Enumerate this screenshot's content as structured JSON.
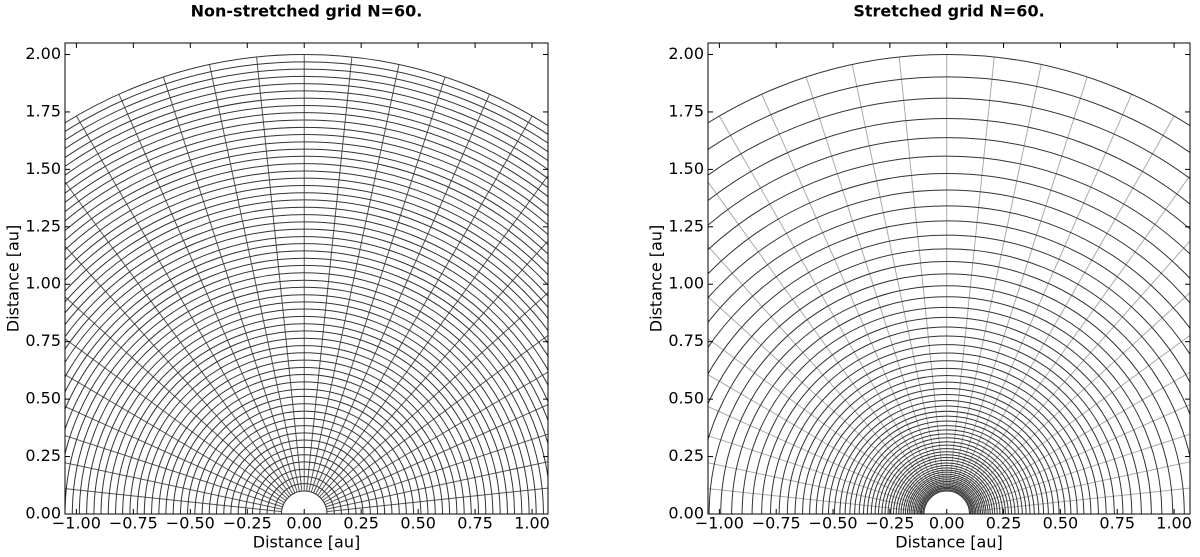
{
  "chart_data": [
    {
      "type": "polar-grid",
      "title": "Non-stretched grid N=60.",
      "xlabel": "Distance [au]",
      "ylabel": "Distance [au]",
      "arc_color": "#333333",
      "ray_color": "#555555",
      "xlim": [
        -1.05,
        1.07
      ],
      "ylim": [
        0,
        2.05
      ],
      "xticks": [
        {
          "value": -1,
          "label": "−1.00"
        },
        {
          "value": -0.75,
          "label": "−0.75"
        },
        {
          "value": -0.5,
          "label": "−0.50"
        },
        {
          "value": -0.25,
          "label": "−0.25"
        },
        {
          "value": 0,
          "label": "0.00"
        },
        {
          "value": 0.25,
          "label": "0.25"
        },
        {
          "value": 0.5,
          "label": "0.50"
        },
        {
          "value": 0.75,
          "label": "0.75"
        },
        {
          "value": 1,
          "label": "1.00"
        }
      ],
      "yticks": [
        {
          "value": 0,
          "label": "0.00"
        },
        {
          "value": 0.25,
          "label": "0.25"
        },
        {
          "value": 0.5,
          "label": "0.50"
        },
        {
          "value": 0.75,
          "label": "0.75"
        },
        {
          "value": 1,
          "label": "1.00"
        },
        {
          "value": 1.25,
          "label": "1.25"
        },
        {
          "value": 1.5,
          "label": "1.50"
        },
        {
          "value": 1.75,
          "label": "1.75"
        },
        {
          "value": 2,
          "label": "2.00"
        }
      ],
      "radii": [
        0.1,
        0.132,
        0.163,
        0.195,
        0.227,
        0.258,
        0.29,
        0.322,
        0.353,
        0.385,
        0.417,
        0.448,
        0.48,
        0.512,
        0.543,
        0.575,
        0.607,
        0.638,
        0.67,
        0.702,
        0.733,
        0.765,
        0.797,
        0.828,
        0.86,
        0.892,
        0.923,
        0.955,
        0.987,
        1.018,
        1.05,
        1.082,
        1.113,
        1.145,
        1.177,
        1.208,
        1.24,
        1.272,
        1.303,
        1.335,
        1.367,
        1.398,
        1.43,
        1.462,
        1.493,
        1.525,
        1.557,
        1.588,
        1.62,
        1.652,
        1.683,
        1.715,
        1.747,
        1.778,
        1.81,
        1.842,
        1.873,
        1.905,
        1.937,
        1.968,
        2.0
      ],
      "angles": [
        0,
        6,
        12,
        18,
        24,
        30,
        36,
        42,
        48,
        54,
        60,
        66,
        72,
        78,
        84,
        90,
        96,
        102,
        108,
        114,
        120,
        126,
        132,
        138,
        144,
        150,
        156,
        162,
        168,
        174,
        180
      ]
    },
    {
      "type": "polar-grid",
      "title": "Stretched grid N=60.",
      "xlabel": "Distance [au]",
      "ylabel": "Distance [au]",
      "arc_color": "#333333",
      "ray_color": "#aaaaaa",
      "xlim": [
        -1.05,
        1.07
      ],
      "ylim": [
        0,
        2.05
      ],
      "xticks": [
        {
          "value": -1,
          "label": "−1.00"
        },
        {
          "value": -0.75,
          "label": "−0.75"
        },
        {
          "value": -0.5,
          "label": "−0.50"
        },
        {
          "value": -0.25,
          "label": "−0.25"
        },
        {
          "value": 0,
          "label": "0.00"
        },
        {
          "value": 0.25,
          "label": "0.25"
        },
        {
          "value": 0.5,
          "label": "0.50"
        },
        {
          "value": 0.75,
          "label": "0.75"
        },
        {
          "value": 1,
          "label": "1.00"
        }
      ],
      "yticks": [
        {
          "value": 0,
          "label": "0.00"
        },
        {
          "value": 0.25,
          "label": "0.25"
        },
        {
          "value": 0.5,
          "label": "0.50"
        },
        {
          "value": 0.75,
          "label": "0.75"
        },
        {
          "value": 1,
          "label": "1.00"
        },
        {
          "value": 1.25,
          "label": "1.25"
        },
        {
          "value": 1.5,
          "label": "1.50"
        },
        {
          "value": 1.75,
          "label": "1.75"
        },
        {
          "value": 2,
          "label": "2.00"
        }
      ],
      "radii": [
        0.1,
        0.105,
        0.111,
        0.116,
        0.122,
        0.128,
        0.135,
        0.142,
        0.149,
        0.157,
        0.165,
        0.173,
        0.182,
        0.191,
        0.201,
        0.211,
        0.222,
        0.234,
        0.246,
        0.258,
        0.271,
        0.285,
        0.3,
        0.315,
        0.332,
        0.349,
        0.366,
        0.385,
        0.405,
        0.426,
        0.447,
        0.47,
        0.494,
        0.52,
        0.546,
        0.574,
        0.603,
        0.634,
        0.667,
        0.701,
        0.737,
        0.775,
        0.814,
        0.856,
        0.9,
        0.946,
        0.994,
        1.045,
        1.099,
        1.155,
        1.214,
        1.276,
        1.341,
        1.41,
        1.482,
        1.558,
        1.638,
        1.722,
        1.81,
        1.903,
        2.0
      ],
      "angles": [
        0,
        6,
        12,
        18,
        24,
        30,
        36,
        42,
        48,
        54,
        60,
        66,
        72,
        78,
        84,
        90,
        96,
        102,
        108,
        114,
        120,
        126,
        132,
        138,
        144,
        150,
        156,
        162,
        168,
        174,
        180
      ]
    }
  ]
}
